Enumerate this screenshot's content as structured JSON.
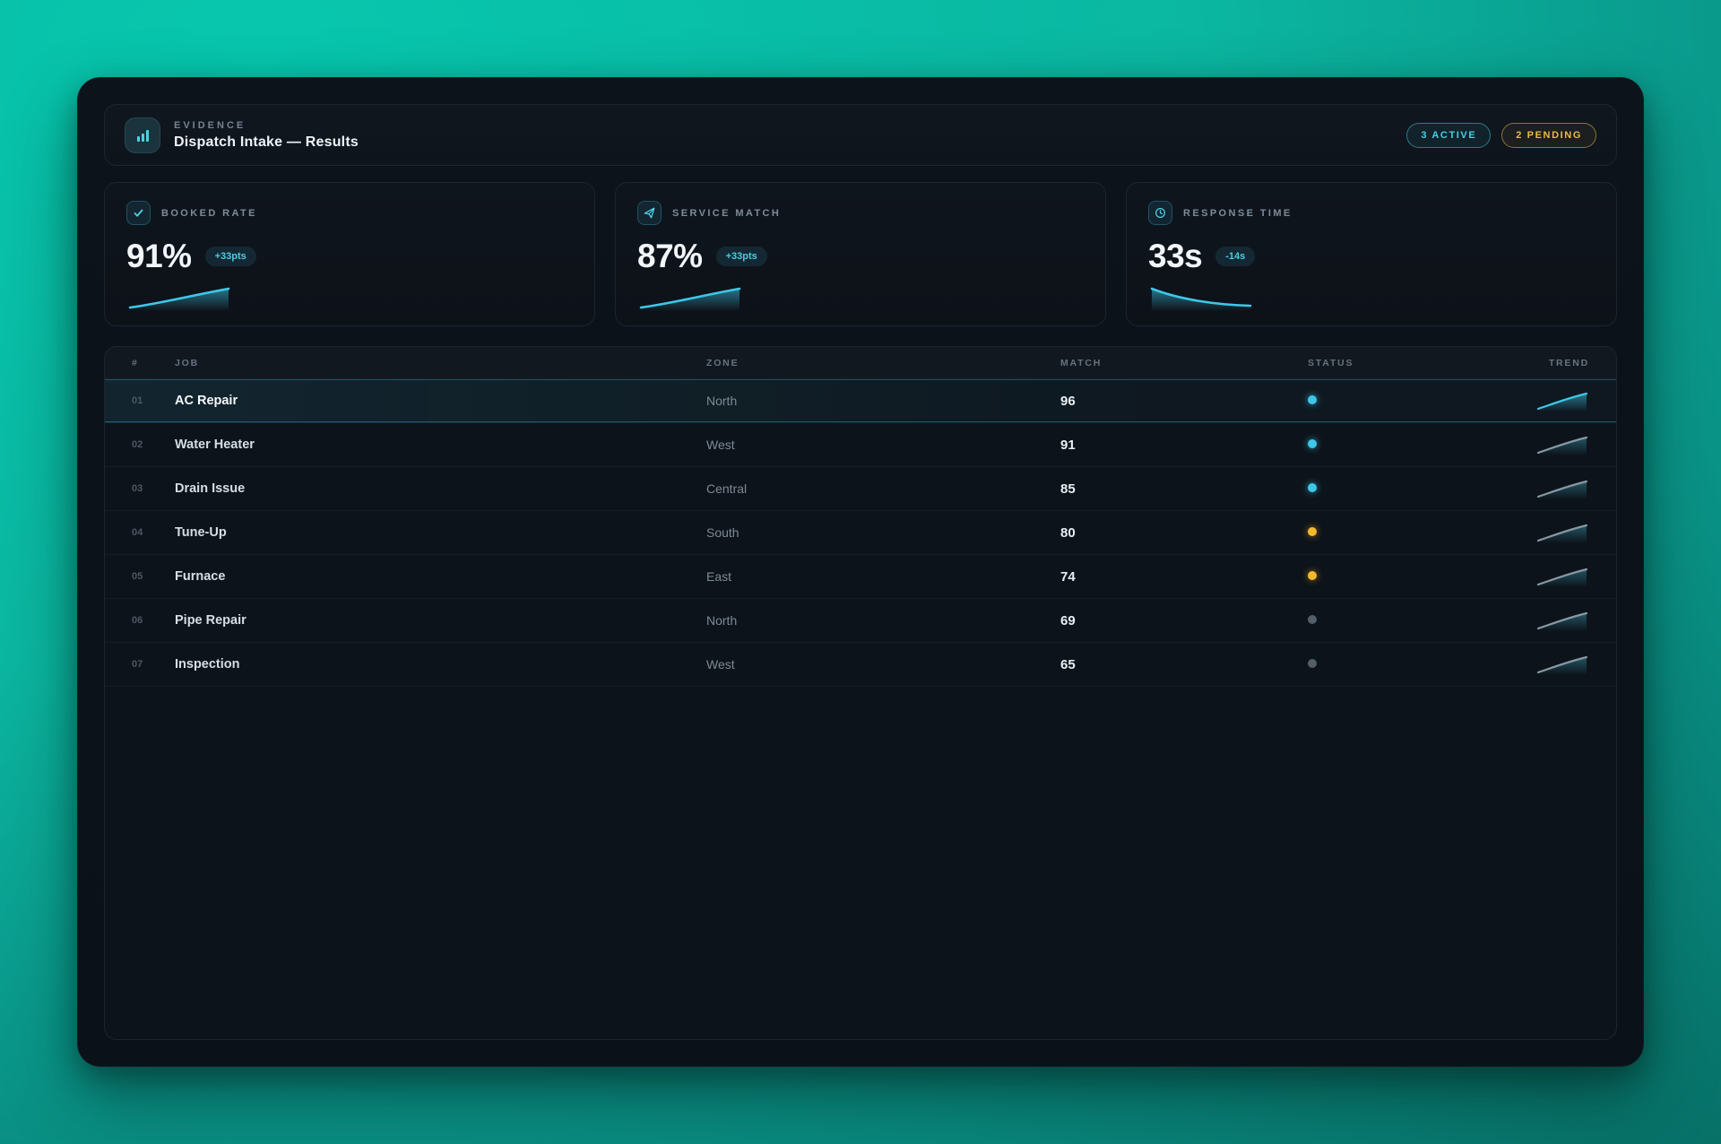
{
  "header": {
    "eyebrow": "EVIDENCE",
    "title": "Dispatch Intake — Results",
    "badges": [
      {
        "label": "3 ACTIVE",
        "type": "active"
      },
      {
        "label": "2 PENDING",
        "type": "pending"
      }
    ]
  },
  "stats": [
    {
      "icon": "check-icon",
      "label": "BOOKED RATE",
      "value": "91%",
      "delta": "+33pts",
      "trend": "up"
    },
    {
      "icon": "send-icon",
      "label": "SERVICE MATCH",
      "value": "87%",
      "delta": "+33pts",
      "trend": "up"
    },
    {
      "icon": "clock-icon",
      "label": "RESPONSE TIME",
      "value": "33s",
      "delta": "-14s",
      "trend": "down"
    }
  ],
  "table": {
    "columns": [
      "#",
      "JOB",
      "ZONE",
      "MATCH",
      "STATUS",
      "TREND"
    ],
    "rows": [
      {
        "num": "01",
        "job": "AC Repair",
        "zone": "North",
        "match": "96",
        "status": "active",
        "highlight": true
      },
      {
        "num": "02",
        "job": "Water Heater",
        "zone": "West",
        "match": "91",
        "status": "active",
        "highlight": false
      },
      {
        "num": "03",
        "job": "Drain Issue",
        "zone": "Central",
        "match": "85",
        "status": "active",
        "highlight": false
      },
      {
        "num": "04",
        "job": "Tune-Up",
        "zone": "South",
        "match": "80",
        "status": "pending",
        "highlight": false
      },
      {
        "num": "05",
        "job": "Furnace",
        "zone": "East",
        "match": "74",
        "status": "pending",
        "highlight": false
      },
      {
        "num": "06",
        "job": "Pipe Repair",
        "zone": "North",
        "match": "69",
        "status": "idle",
        "highlight": false
      },
      {
        "num": "07",
        "job": "Inspection",
        "zone": "West",
        "match": "65",
        "status": "idle",
        "highlight": false
      }
    ]
  },
  "colors": {
    "accent_cyan": "#3ec7e8",
    "accent_amber": "#f5b82d",
    "background_teal": "#0bb7a1",
    "panel_dark": "#0d131b"
  }
}
